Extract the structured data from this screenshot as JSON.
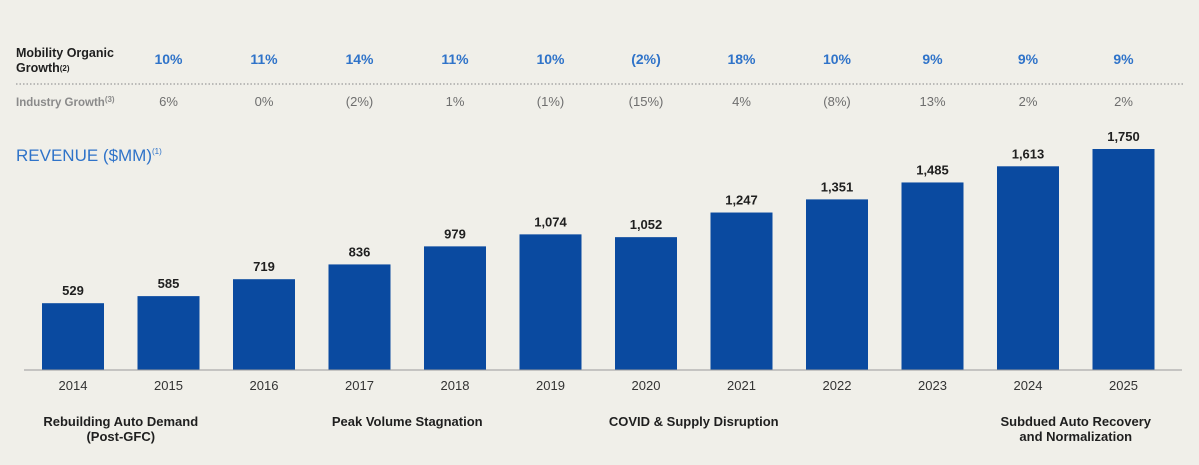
{
  "rows": {
    "mobility_label_line1": "Mobility Organic",
    "mobility_label_line2": "Growth",
    "mobility_label_sup": "(2)",
    "mobility_values": [
      "10%",
      "11%",
      "14%",
      "11%",
      "10%",
      "(2%)",
      "18%",
      "10%",
      "9%",
      "9%",
      "9%"
    ],
    "industry_label": "Industry Growth",
    "industry_label_sup": "(3)",
    "industry_values": [
      "6%",
      "0%",
      "(2%)",
      "1%",
      "(1%)",
      "(15%)",
      "4%",
      "(8%)",
      "13%",
      "2%",
      "2%"
    ]
  },
  "revenue_title": "REVENUE ($MM)",
  "revenue_title_sup": "(1)",
  "chart_data": {
    "type": "bar",
    "categories": [
      "2014",
      "2015",
      "2016",
      "2017",
      "2018",
      "2019",
      "2020",
      "2021",
      "2022",
      "2023",
      "2024",
      "2025"
    ],
    "values": [
      529,
      585,
      719,
      836,
      979,
      1074,
      1052,
      1247,
      1351,
      1485,
      1613,
      1750
    ],
    "value_labels": [
      "529",
      "585",
      "719",
      "836",
      "979",
      "1,074",
      "1,052",
      "1,247",
      "1,351",
      "1,485",
      "1,613",
      "1,750"
    ],
    "title": "REVENUE ($MM)",
    "xlabel": "",
    "ylabel": "",
    "ylim": [
      0,
      1750
    ],
    "bar_color": "#0a4aa0",
    "grid": false
  },
  "phases": [
    {
      "line1": "Rebuilding Auto Demand",
      "line2": "(Post-GFC)",
      "span": [
        2014,
        2015
      ]
    },
    {
      "line1": "Peak Volume Stagnation",
      "line2": "",
      "span": [
        2017,
        2018
      ]
    },
    {
      "line1": "COVID & Supply Disruption",
      "line2": "",
      "span": [
        2020,
        2021
      ]
    },
    {
      "line1": "Subdued Auto Recovery",
      "line2": "and Normalization",
      "span": [
        2024,
        2025
      ]
    }
  ],
  "colors": {
    "accent_blue": "#2f73c9",
    "bar_blue": "#0a4aa0",
    "background": "#f0efe9"
  }
}
